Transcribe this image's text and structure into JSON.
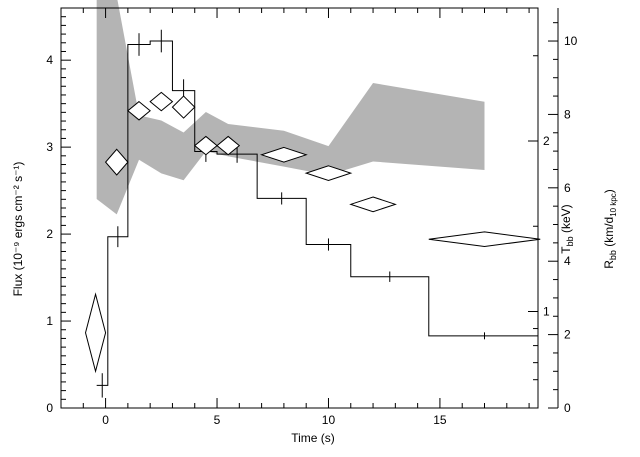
{
  "chart_data": {
    "type": "line",
    "title": "",
    "xlabel": "Time (s)",
    "ylabel": "Flux (10⁻⁹ ergs cm⁻² s⁻¹)",
    "y2label": "T",
    "y2label_sub": "bb",
    "y2label_unit": " (keV)",
    "y3label": "R",
    "y3label_sub": "bb",
    "y3label_unit": " (km/d",
    "y3label_unit_sub": "10 kpc",
    "y3label_unit_end": ")",
    "xlim": [
      -2.0,
      19.4
    ],
    "ylim": [
      0,
      4.6
    ],
    "x_ticks": [
      0,
      5,
      10,
      15
    ],
    "y_ticks": [
      0,
      1,
      2,
      3,
      4
    ],
    "temperature_axis": {
      "tick_values": [
        1,
        2
      ],
      "labels": [
        "1",
        "2"
      ]
    },
    "radius_axis": {
      "range": [
        0,
        10.9
      ],
      "tick_values": [
        0,
        2,
        4,
        6,
        8,
        10
      ],
      "labels": [
        "0",
        "2",
        "4",
        "6",
        "8",
        "10"
      ]
    },
    "grid": false,
    "flux_histogram": [
      {
        "x0": -0.4,
        "x1": 0.1,
        "y": 0.26
      },
      {
        "x0": 0.1,
        "x1": 1.0,
        "y": 1.97
      },
      {
        "x0": 1.0,
        "x1": 2.0,
        "y": 4.18
      },
      {
        "x0": 2.0,
        "x1": 3.0,
        "y": 4.22
      },
      {
        "x0": 3.0,
        "x1": 4.0,
        "y": 3.65
      },
      {
        "x0": 4.0,
        "x1": 5.0,
        "y": 2.95
      },
      {
        "x0": 5.0,
        "x1": 6.8,
        "y": 2.92
      },
      {
        "x0": 6.8,
        "x1": 9.0,
        "y": 2.41
      },
      {
        "x0": 9.0,
        "x1": 11.0,
        "y": 1.88
      },
      {
        "x0": 11.0,
        "x1": 14.5,
        "y": 1.51
      },
      {
        "x0": 14.5,
        "x1": 19.4,
        "y": 0.83
      }
    ],
    "flux_errors": [
      {
        "x": -0.15,
        "y": 0.26,
        "err": 0.14
      },
      {
        "x": 0.55,
        "y": 1.97,
        "err": 0.12
      },
      {
        "x": 1.5,
        "y": 4.18,
        "err": 0.13
      },
      {
        "x": 2.5,
        "y": 4.22,
        "err": 0.13
      },
      {
        "x": 3.5,
        "y": 3.65,
        "err": 0.13
      },
      {
        "x": 4.5,
        "y": 2.95,
        "err": 0.12
      },
      {
        "x": 5.9,
        "y": 2.92,
        "err": 0.1
      },
      {
        "x": 7.9,
        "y": 2.41,
        "err": 0.07
      },
      {
        "x": 10.0,
        "y": 1.88,
        "err": 0.07
      },
      {
        "x": 12.75,
        "y": 1.51,
        "err": 0.06
      },
      {
        "x": 17.0,
        "y": 0.83,
        "err": 0.04
      }
    ],
    "radius_points": [
      {
        "x": -0.45,
        "xerr": 0.45,
        "y": 2.05,
        "yerr": 1.05
      },
      {
        "x": 0.5,
        "xerr": 0.5,
        "y": 6.7,
        "yerr": 0.35
      },
      {
        "x": 1.5,
        "xerr": 0.5,
        "y": 8.1,
        "yerr": 0.25
      },
      {
        "x": 2.5,
        "xerr": 0.5,
        "y": 8.35,
        "yerr": 0.25
      },
      {
        "x": 3.5,
        "xerr": 0.5,
        "y": 8.2,
        "yerr": 0.3
      },
      {
        "x": 4.5,
        "xerr": 0.5,
        "y": 7.15,
        "yerr": 0.25
      },
      {
        "x": 5.5,
        "xerr": 0.5,
        "y": 7.15,
        "yerr": 0.25
      },
      {
        "x": 8.0,
        "xerr": 1.0,
        "y": 6.9,
        "yerr": 0.2
      },
      {
        "x": 10.0,
        "xerr": 1.0,
        "y": 6.4,
        "yerr": 0.2
      },
      {
        "x": 12.0,
        "xerr": 1.0,
        "y": 5.55,
        "yerr": 0.2
      },
      {
        "x": 17.0,
        "xerr": 2.5,
        "y": 4.6,
        "yerr": 0.2
      }
    ],
    "temperature_band": {
      "color": "#b4b4b4",
      "x": [
        -0.4,
        0.5,
        1.5,
        2.5,
        3.5,
        4.5,
        5.5,
        8.0,
        10.0,
        12.0,
        17.0
      ],
      "upper": [
        4.55,
        2.85,
        2.15,
        2.12,
        2.05,
        2.17,
        2.1,
        2.06,
        1.97,
        2.34,
        2.23
      ],
      "lower": [
        1.66,
        1.57,
        1.89,
        1.81,
        1.77,
        1.94,
        1.91,
        1.85,
        1.8,
        1.88,
        1.83
      ]
    }
  }
}
